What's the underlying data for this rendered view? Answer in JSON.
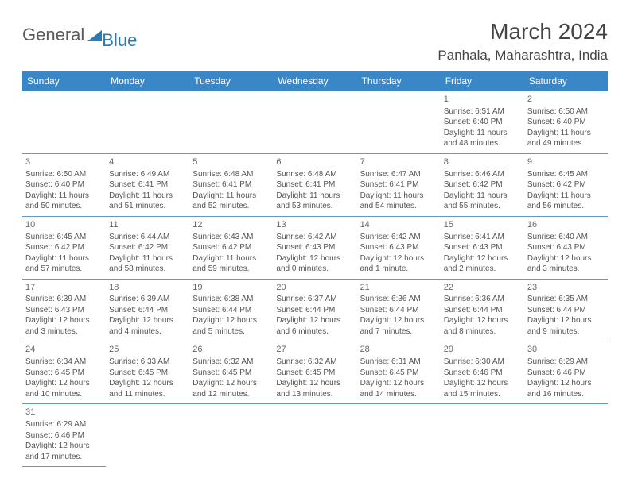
{
  "logo": {
    "text1": "General",
    "text2": "Blue"
  },
  "header": {
    "title": "March 2024",
    "location": "Panhala, Maharashtra, India"
  },
  "dayHeaders": [
    "Sunday",
    "Monday",
    "Tuesday",
    "Wednesday",
    "Thursday",
    "Friday",
    "Saturday"
  ],
  "weeks": [
    [
      null,
      null,
      null,
      null,
      null,
      {
        "n": "1",
        "sr": "Sunrise: 6:51 AM",
        "ss": "Sunset: 6:40 PM",
        "dl1": "Daylight: 11 hours",
        "dl2": "and 48 minutes."
      },
      {
        "n": "2",
        "sr": "Sunrise: 6:50 AM",
        "ss": "Sunset: 6:40 PM",
        "dl1": "Daylight: 11 hours",
        "dl2": "and 49 minutes."
      }
    ],
    [
      {
        "n": "3",
        "sr": "Sunrise: 6:50 AM",
        "ss": "Sunset: 6:40 PM",
        "dl1": "Daylight: 11 hours",
        "dl2": "and 50 minutes."
      },
      {
        "n": "4",
        "sr": "Sunrise: 6:49 AM",
        "ss": "Sunset: 6:41 PM",
        "dl1": "Daylight: 11 hours",
        "dl2": "and 51 minutes."
      },
      {
        "n": "5",
        "sr": "Sunrise: 6:48 AM",
        "ss": "Sunset: 6:41 PM",
        "dl1": "Daylight: 11 hours",
        "dl2": "and 52 minutes."
      },
      {
        "n": "6",
        "sr": "Sunrise: 6:48 AM",
        "ss": "Sunset: 6:41 PM",
        "dl1": "Daylight: 11 hours",
        "dl2": "and 53 minutes."
      },
      {
        "n": "7",
        "sr": "Sunrise: 6:47 AM",
        "ss": "Sunset: 6:41 PM",
        "dl1": "Daylight: 11 hours",
        "dl2": "and 54 minutes."
      },
      {
        "n": "8",
        "sr": "Sunrise: 6:46 AM",
        "ss": "Sunset: 6:42 PM",
        "dl1": "Daylight: 11 hours",
        "dl2": "and 55 minutes."
      },
      {
        "n": "9",
        "sr": "Sunrise: 6:45 AM",
        "ss": "Sunset: 6:42 PM",
        "dl1": "Daylight: 11 hours",
        "dl2": "and 56 minutes."
      }
    ],
    [
      {
        "n": "10",
        "sr": "Sunrise: 6:45 AM",
        "ss": "Sunset: 6:42 PM",
        "dl1": "Daylight: 11 hours",
        "dl2": "and 57 minutes."
      },
      {
        "n": "11",
        "sr": "Sunrise: 6:44 AM",
        "ss": "Sunset: 6:42 PM",
        "dl1": "Daylight: 11 hours",
        "dl2": "and 58 minutes."
      },
      {
        "n": "12",
        "sr": "Sunrise: 6:43 AM",
        "ss": "Sunset: 6:42 PM",
        "dl1": "Daylight: 11 hours",
        "dl2": "and 59 minutes."
      },
      {
        "n": "13",
        "sr": "Sunrise: 6:42 AM",
        "ss": "Sunset: 6:43 PM",
        "dl1": "Daylight: 12 hours",
        "dl2": "and 0 minutes."
      },
      {
        "n": "14",
        "sr": "Sunrise: 6:42 AM",
        "ss": "Sunset: 6:43 PM",
        "dl1": "Daylight: 12 hours",
        "dl2": "and 1 minute."
      },
      {
        "n": "15",
        "sr": "Sunrise: 6:41 AM",
        "ss": "Sunset: 6:43 PM",
        "dl1": "Daylight: 12 hours",
        "dl2": "and 2 minutes."
      },
      {
        "n": "16",
        "sr": "Sunrise: 6:40 AM",
        "ss": "Sunset: 6:43 PM",
        "dl1": "Daylight: 12 hours",
        "dl2": "and 3 minutes."
      }
    ],
    [
      {
        "n": "17",
        "sr": "Sunrise: 6:39 AM",
        "ss": "Sunset: 6:43 PM",
        "dl1": "Daylight: 12 hours",
        "dl2": "and 3 minutes."
      },
      {
        "n": "18",
        "sr": "Sunrise: 6:39 AM",
        "ss": "Sunset: 6:44 PM",
        "dl1": "Daylight: 12 hours",
        "dl2": "and 4 minutes."
      },
      {
        "n": "19",
        "sr": "Sunrise: 6:38 AM",
        "ss": "Sunset: 6:44 PM",
        "dl1": "Daylight: 12 hours",
        "dl2": "and 5 minutes."
      },
      {
        "n": "20",
        "sr": "Sunrise: 6:37 AM",
        "ss": "Sunset: 6:44 PM",
        "dl1": "Daylight: 12 hours",
        "dl2": "and 6 minutes."
      },
      {
        "n": "21",
        "sr": "Sunrise: 6:36 AM",
        "ss": "Sunset: 6:44 PM",
        "dl1": "Daylight: 12 hours",
        "dl2": "and 7 minutes."
      },
      {
        "n": "22",
        "sr": "Sunrise: 6:36 AM",
        "ss": "Sunset: 6:44 PM",
        "dl1": "Daylight: 12 hours",
        "dl2": "and 8 minutes."
      },
      {
        "n": "23",
        "sr": "Sunrise: 6:35 AM",
        "ss": "Sunset: 6:44 PM",
        "dl1": "Daylight: 12 hours",
        "dl2": "and 9 minutes."
      }
    ],
    [
      {
        "n": "24",
        "sr": "Sunrise: 6:34 AM",
        "ss": "Sunset: 6:45 PM",
        "dl1": "Daylight: 12 hours",
        "dl2": "and 10 minutes."
      },
      {
        "n": "25",
        "sr": "Sunrise: 6:33 AM",
        "ss": "Sunset: 6:45 PM",
        "dl1": "Daylight: 12 hours",
        "dl2": "and 11 minutes."
      },
      {
        "n": "26",
        "sr": "Sunrise: 6:32 AM",
        "ss": "Sunset: 6:45 PM",
        "dl1": "Daylight: 12 hours",
        "dl2": "and 12 minutes."
      },
      {
        "n": "27",
        "sr": "Sunrise: 6:32 AM",
        "ss": "Sunset: 6:45 PM",
        "dl1": "Daylight: 12 hours",
        "dl2": "and 13 minutes."
      },
      {
        "n": "28",
        "sr": "Sunrise: 6:31 AM",
        "ss": "Sunset: 6:45 PM",
        "dl1": "Daylight: 12 hours",
        "dl2": "and 14 minutes."
      },
      {
        "n": "29",
        "sr": "Sunrise: 6:30 AM",
        "ss": "Sunset: 6:46 PM",
        "dl1": "Daylight: 12 hours",
        "dl2": "and 15 minutes."
      },
      {
        "n": "30",
        "sr": "Sunrise: 6:29 AM",
        "ss": "Sunset: 6:46 PM",
        "dl1": "Daylight: 12 hours",
        "dl2": "and 16 minutes."
      }
    ],
    [
      {
        "n": "31",
        "sr": "Sunrise: 6:29 AM",
        "ss": "Sunset: 6:46 PM",
        "dl1": "Daylight: 12 hours",
        "dl2": "and 17 minutes."
      },
      null,
      null,
      null,
      null,
      null,
      null
    ]
  ],
  "colors": {
    "header_bg": "#3a87c8",
    "row_border": "#5a9bd0",
    "text": "#555555"
  }
}
